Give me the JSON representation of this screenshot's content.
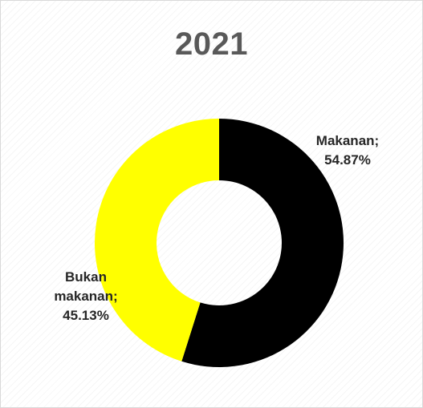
{
  "chart_data": {
    "type": "pie",
    "title": "2021",
    "hole": true,
    "slices": [
      {
        "name": "Makanan",
        "value": 54.87,
        "label_lines": [
          "Makanan;",
          "54.87%"
        ],
        "color": "#000000"
      },
      {
        "name": "Bukan makanan",
        "value": 45.13,
        "label_lines": [
          "Bukan",
          "makanan;",
          "45.13%"
        ],
        "color": "#FFFF00"
      }
    ]
  }
}
